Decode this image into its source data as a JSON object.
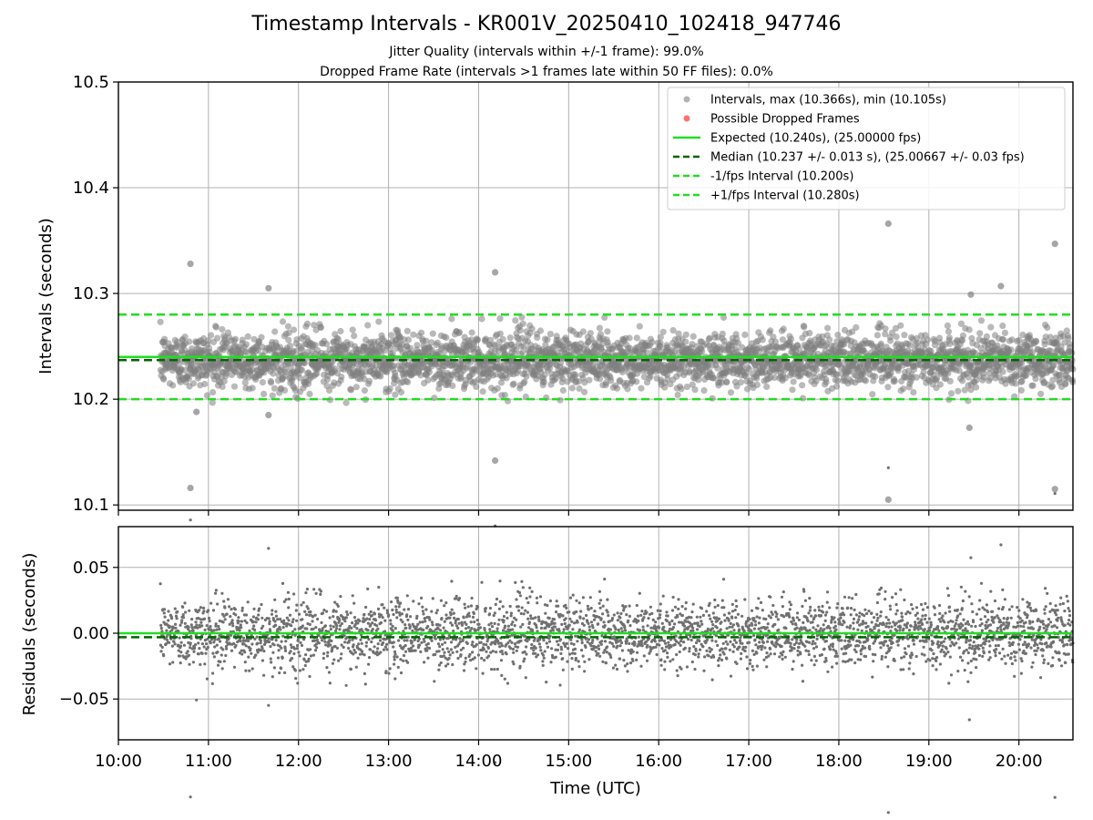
{
  "header": {
    "title": "Timestamp Intervals - KR001V_20250410_102418_947746",
    "subtitle1": "Jitter Quality (intervals within +/-1 frame): 99.0%",
    "subtitle2": "Dropped Frame Rate (intervals >1 frames late within 50 FF files): 0.0%"
  },
  "colors": {
    "points": "#808080",
    "dropped": "#ff4d4d",
    "expected": "#22dd22",
    "median": "#006400",
    "fps_interval": "#22dd22",
    "grid": "#b0b0b0"
  },
  "chart_data": [
    {
      "type": "scatter",
      "panel": "top",
      "ylabel": "Intervals (seconds)",
      "ylim": [
        10.095,
        10.5
      ],
      "xlim": [
        "10:00",
        "20:36"
      ],
      "yticks": [
        "10.1",
        "10.2",
        "10.3",
        "10.4",
        "10.5"
      ],
      "ytick_values": [
        10.1,
        10.2,
        10.3,
        10.4,
        10.5
      ],
      "grid": true,
      "legend_position": "top-right",
      "series": [
        {
          "name": "Intervals, max (10.366s), min (10.105s)",
          "kind": "points",
          "x_range": [
            "10:28",
            "20:36"
          ],
          "center": 10.237,
          "spread": 0.013,
          "count": 3400,
          "outliers": [
            {
              "x": "10:48",
              "y": 10.328
            },
            {
              "x": "10:48",
              "y": 10.116
            },
            {
              "x": "10:52",
              "y": 10.188
            },
            {
              "x": "11:40",
              "y": 10.305
            },
            {
              "x": "11:40",
              "y": 10.185
            },
            {
              "x": "14:11",
              "y": 10.32
            },
            {
              "x": "14:11",
              "y": 10.142
            },
            {
              "x": "18:33",
              "y": 10.366
            },
            {
              "x": "18:33",
              "y": 10.105
            },
            {
              "x": "19:27",
              "y": 10.173
            },
            {
              "x": "19:28",
              "y": 10.299
            },
            {
              "x": "19:48",
              "y": 10.307
            },
            {
              "x": "20:24",
              "y": 10.347
            },
            {
              "x": "20:24",
              "y": 10.115
            }
          ]
        },
        {
          "name": "Possible Dropped Frames",
          "kind": "points",
          "count": 0
        },
        {
          "name": "Expected (10.240s), (25.00000 fps)",
          "kind": "hline",
          "y": 10.24
        },
        {
          "name": "Median (10.237 +/- 0.013 s), (25.00667 +/- 0.03 fps)",
          "kind": "hline",
          "y": 10.237
        },
        {
          "name": "-1/fps Interval (10.200s)",
          "kind": "hline",
          "y": 10.2
        },
        {
          "name": "+1/fps Interval (10.280s)",
          "kind": "hline",
          "y": 10.28
        }
      ]
    },
    {
      "type": "scatter",
      "panel": "bottom",
      "xlabel": "Time (UTC)",
      "ylabel": "Residuals (seconds)",
      "ylim": [
        -0.081,
        0.081
      ],
      "yticks": [
        "−0.05",
        "0.00",
        "0.05"
      ],
      "ytick_values": [
        -0.05,
        0,
        0.05
      ],
      "xticks": [
        "10:00",
        "11:00",
        "12:00",
        "13:00",
        "14:00",
        "15:00",
        "16:00",
        "17:00",
        "18:00",
        "19:00",
        "20:00"
      ],
      "grid": true,
      "series": [
        {
          "kind": "points",
          "center": 0.0,
          "spread": 0.013,
          "count": 3400
        },
        {
          "kind": "hline",
          "y": 0.0,
          "color": "expected"
        },
        {
          "kind": "hline",
          "y": -0.003,
          "color": "median"
        }
      ]
    }
  ]
}
